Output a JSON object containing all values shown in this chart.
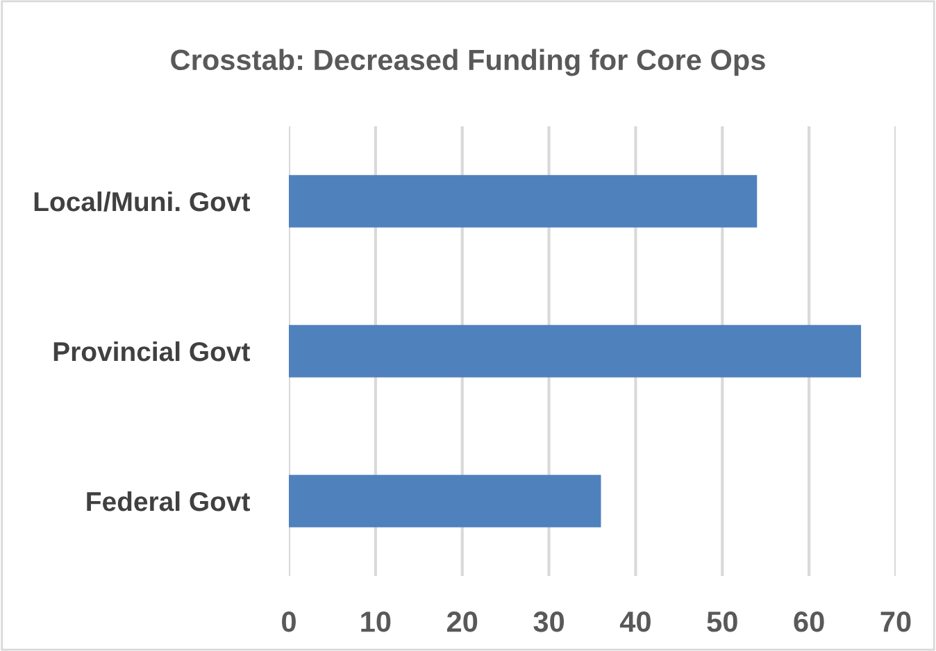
{
  "chart_data": {
    "type": "bar",
    "orientation": "horizontal",
    "title": "Crosstab: Decreased Funding for Core Ops",
    "categories": [
      "Local/Muni. Govt",
      "Provincial Govt",
      "Federal Govt"
    ],
    "values": [
      54,
      66,
      36
    ],
    "color": "#4f81bd",
    "xlim": [
      0,
      70
    ],
    "xticks": [
      0,
      10,
      20,
      30,
      40,
      50,
      60,
      70
    ],
    "grid": "x"
  }
}
